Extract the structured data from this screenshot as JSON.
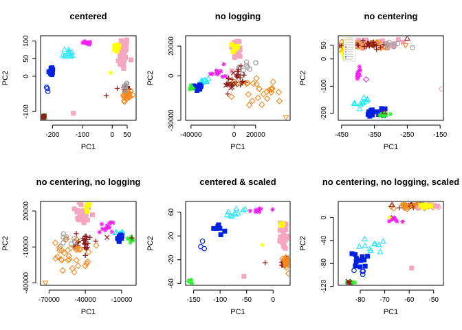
{
  "colors": {
    "pink": "#F4A6C0",
    "yellow": "#FFFF00",
    "gray": "#A0A0A0",
    "darkred": "#8B1A1A",
    "orange": "#F08A1C",
    "magenta": "#F020F0",
    "cyan": "#20E8FF",
    "blue": "#0020E0",
    "green": "#30EE30"
  },
  "chart_data": [
    {
      "type": "scatter",
      "title": "centered",
      "xlabel": "PC1",
      "ylabel": "PC2",
      "xlim": [
        -240,
        80
      ],
      "ylim": [
        -125,
        115
      ],
      "xticks": [
        -200,
        -100,
        0,
        50
      ],
      "yticks": [
        -100,
        0,
        50,
        100
      ],
      "clusters": [
        {
          "color": "pink",
          "shape": "square",
          "n": 40,
          "cx": 35,
          "cy": 65,
          "sx": 10,
          "sy": 25
        },
        {
          "color": "yellow",
          "shape": "square",
          "n": 10,
          "cx": 15,
          "cy": 80,
          "sx": 5,
          "sy": 5
        },
        {
          "color": "magenta",
          "shape": "asterisk",
          "n": 12,
          "cx": -80,
          "cy": 95,
          "sx": 10,
          "sy": 3
        },
        {
          "color": "cyan",
          "shape": "triangle",
          "n": 12,
          "cx": -150,
          "cy": 65,
          "sx": 12,
          "sy": 8
        },
        {
          "color": "blue",
          "shape": "square",
          "n": 12,
          "cx": -205,
          "cy": 15,
          "sx": 4,
          "sy": 6
        },
        {
          "color": "blue",
          "shape": "circle",
          "n": 3,
          "cx": -215,
          "cy": -38,
          "sx": 2,
          "sy": 6
        },
        {
          "color": "darkred",
          "shape": "plus",
          "n": 20,
          "cx": 45,
          "cy": -40,
          "sx": 7,
          "sy": 12
        },
        {
          "color": "orange",
          "shape": "diamond",
          "n": 25,
          "cx": 50,
          "cy": -55,
          "sx": 8,
          "sy": 10
        },
        {
          "color": "gray",
          "shape": "circle",
          "n": 8,
          "cx": 45,
          "cy": -30,
          "sx": 5,
          "sy": 8
        },
        {
          "color": "green",
          "shape": "asterisk",
          "n": 8,
          "cx": -228,
          "cy": -115,
          "sx": 4,
          "sy": 4
        },
        {
          "color": "darkred",
          "shape": "square",
          "n": 4,
          "cx": -230,
          "cy": -115,
          "sx": 3,
          "sy": 3
        }
      ],
      "points": [
        {
          "x": -20,
          "y": -55,
          "color": "darkred",
          "shape": "plus"
        },
        {
          "x": -130,
          "y": -105,
          "color": "pink",
          "shape": "square"
        },
        {
          "x": -5,
          "y": 10,
          "color": "yellow",
          "shape": "asterisk"
        }
      ]
    },
    {
      "type": "scatter",
      "title": "no logging",
      "xlabel": "PC1",
      "ylabel": "PC2",
      "xlim": [
        -45000,
        52000
      ],
      "ylim": [
        -30000,
        27000
      ],
      "xticks": [
        -40000,
        0,
        20000
      ],
      "yticks": [
        -30000,
        0,
        20000
      ],
      "clusters": [
        {
          "color": "pink",
          "shape": "square",
          "n": 30,
          "cx": 2000,
          "cy": 18000,
          "sx": 2500,
          "sy": 3500
        },
        {
          "color": "yellow",
          "shape": "square",
          "n": 6,
          "cx": 1500,
          "cy": 19000,
          "sx": 1500,
          "sy": 2000
        },
        {
          "color": "gray",
          "shape": "circle",
          "n": 10,
          "cx": 12000,
          "cy": 5000,
          "sx": 5000,
          "sy": 3000
        },
        {
          "color": "darkred",
          "shape": "plus",
          "n": 25,
          "cx": 2000,
          "cy": -3000,
          "sx": 5000,
          "sy": 4000
        },
        {
          "color": "darkred",
          "shape": "cross",
          "n": 8,
          "cx": -3000,
          "cy": -5000,
          "sx": 4000,
          "sy": 3000
        },
        {
          "color": "orange",
          "shape": "diamond",
          "n": 25,
          "cx": 20000,
          "cy": -10000,
          "sx": 9000,
          "sy": 5000
        },
        {
          "color": "magenta",
          "shape": "asterisk",
          "n": 12,
          "cx": -15000,
          "cy": 2000,
          "sx": 4000,
          "sy": 2500
        },
        {
          "color": "cyan",
          "shape": "triangle",
          "n": 8,
          "cx": -27000,
          "cy": -3500,
          "sx": 2000,
          "sy": 1500
        },
        {
          "color": "blue",
          "shape": "square",
          "n": 14,
          "cx": -33000,
          "cy": -7500,
          "sx": 2000,
          "sy": 1500
        },
        {
          "color": "green",
          "shape": "asterisk",
          "n": 8,
          "cx": -40000,
          "cy": -8500,
          "sx": 1000,
          "sy": 1000
        }
      ],
      "points": [
        {
          "x": 48000,
          "y": -28000,
          "color": "orange",
          "shape": "triangle-down"
        },
        {
          "x": 42000,
          "y": -17000,
          "color": "orange",
          "shape": "diamond"
        }
      ]
    },
    {
      "type": "scatter",
      "title": "no centering",
      "xlabel": "PC1",
      "ylabel": "PC2",
      "xlim": [
        -460,
        -140
      ],
      "ylim": [
        -225,
        85
      ],
      "xticks": [
        -450,
        -350,
        -250,
        -150
      ],
      "yticks": [
        -200,
        -100,
        0,
        50
      ],
      "legend": "top-left",
      "clusters": [
        {
          "color": "yellow",
          "shape": "square",
          "n": 20,
          "cx": -430,
          "cy": 40,
          "sx": 12,
          "sy": 15
        },
        {
          "color": "pink",
          "shape": "square",
          "n": 30,
          "cx": -345,
          "cy": 55,
          "sx": 35,
          "sy": 8
        },
        {
          "color": "orange",
          "shape": "diamond",
          "n": 25,
          "cx": -390,
          "cy": 50,
          "sx": 40,
          "sy": 8
        },
        {
          "color": "darkred",
          "shape": "plus",
          "n": 25,
          "cx": -380,
          "cy": 52,
          "sx": 40,
          "sy": 6
        },
        {
          "color": "gray",
          "shape": "circle",
          "n": 8,
          "cx": -290,
          "cy": 50,
          "sx": 20,
          "sy": 8
        },
        {
          "color": "magenta",
          "shape": "asterisk",
          "n": 12,
          "cx": -400,
          "cy": -55,
          "sx": 4,
          "sy": 15
        },
        {
          "color": "cyan",
          "shape": "triangle",
          "n": 12,
          "cx": -385,
          "cy": -160,
          "sx": 12,
          "sy": 10
        },
        {
          "color": "blue",
          "shape": "square",
          "n": 14,
          "cx": -350,
          "cy": -195,
          "sx": 15,
          "sy": 6
        },
        {
          "color": "green",
          "shape": "asterisk",
          "n": 10,
          "cx": -315,
          "cy": -205,
          "sx": 8,
          "sy": 3
        }
      ],
      "points": [
        {
          "x": -375,
          "y": -75,
          "color": "magenta",
          "shape": "diamond"
        },
        {
          "x": -145,
          "y": -110,
          "color": "pink",
          "shape": "circle"
        },
        {
          "x": -250,
          "y": 75,
          "color": "darkred",
          "shape": "triangle"
        },
        {
          "x": -255,
          "y": 50,
          "color": "orange",
          "shape": "triangle-down"
        },
        {
          "x": -320,
          "y": -195,
          "color": "darkred",
          "shape": "triangle"
        }
      ]
    },
    {
      "type": "scatter",
      "title": "no centering, no logging",
      "xlabel": "PC1",
      "ylabel": "PC2",
      "xlim": [
        -77000,
        2000
      ],
      "ylim": [
        -42000,
        28000
      ],
      "xticks": [
        -70000,
        -40000,
        -10000
      ],
      "yticks": [
        -40000,
        -10000,
        20000
      ],
      "clusters": [
        {
          "color": "pink",
          "shape": "square",
          "n": 30,
          "cx": -42000,
          "cy": 18000,
          "sx": 4500,
          "sy": 5000
        },
        {
          "color": "yellow",
          "shape": "square",
          "n": 6,
          "cx": -38000,
          "cy": 23000,
          "sx": 2000,
          "sy": 2000
        },
        {
          "color": "gray",
          "shape": "circle",
          "n": 12,
          "cx": -53000,
          "cy": -6000,
          "sx": 5000,
          "sy": 5000
        },
        {
          "color": "darkred",
          "shape": "plus",
          "n": 25,
          "cx": -40000,
          "cy": -6000,
          "sx": 4500,
          "sy": 4000
        },
        {
          "color": "orange",
          "shape": "diamond",
          "n": 30,
          "cx": -52000,
          "cy": -18000,
          "sx": 7000,
          "sy": 7000
        },
        {
          "color": "magenta",
          "shape": "asterisk",
          "n": 12,
          "cx": -22000,
          "cy": 8000,
          "sx": 3000,
          "sy": 3000
        },
        {
          "color": "cyan",
          "shape": "triangle",
          "n": 8,
          "cx": -12000,
          "cy": 2000,
          "sx": 2000,
          "sy": 2000
        },
        {
          "color": "blue",
          "shape": "square",
          "n": 8,
          "cx": -11000,
          "cy": -3000,
          "sx": 1500,
          "sy": 1500
        },
        {
          "color": "green",
          "shape": "asterisk",
          "n": 8,
          "cx": -3000,
          "cy": -3500,
          "sx": 1500,
          "sy": 1500
        }
      ],
      "points": [
        {
          "x": -73000,
          "y": -40000,
          "color": "orange",
          "shape": "triangle-down"
        },
        {
          "x": -22000,
          "y": -2000,
          "color": "darkred",
          "shape": "cross"
        },
        {
          "x": -1500,
          "y": -2500,
          "color": "darkred",
          "shape": "plus"
        }
      ]
    },
    {
      "type": "scatter",
      "title": "centered & scaled",
      "xlabel": "PC1",
      "ylabel": "PC2",
      "xlim": [
        -165,
        32
      ],
      "ylim": [
        -63,
        78
      ],
      "xticks": [
        -150,
        -100,
        -50,
        0
      ],
      "yticks": [
        -60,
        -20,
        20,
        60
      ],
      "clusters": [
        {
          "color": "magenta",
          "shape": "asterisk",
          "n": 10,
          "cx": -25,
          "cy": 65,
          "sx": 8,
          "sy": 3
        },
        {
          "color": "cyan",
          "shape": "triangle",
          "n": 10,
          "cx": -70,
          "cy": 58,
          "sx": 12,
          "sy": 5
        },
        {
          "color": "blue",
          "shape": "square",
          "n": 8,
          "cx": -100,
          "cy": 33,
          "sx": 6,
          "sy": 5
        },
        {
          "color": "blue",
          "shape": "circle",
          "n": 3,
          "cx": -135,
          "cy": 5,
          "sx": 3,
          "sy": 6
        },
        {
          "color": "pink",
          "shape": "square",
          "n": 30,
          "cx": 20,
          "cy": 22,
          "sx": 3,
          "sy": 12
        },
        {
          "color": "yellow",
          "shape": "square",
          "n": 5,
          "cx": 17,
          "cy": 40,
          "sx": 2,
          "sy": 3
        },
        {
          "color": "darkred",
          "shape": "plus",
          "n": 20,
          "cx": 22,
          "cy": -25,
          "sx": 3,
          "sy": 5
        },
        {
          "color": "orange",
          "shape": "diamond",
          "n": 25,
          "cx": 25,
          "cy": -25,
          "sx": 3,
          "sy": 6
        },
        {
          "color": "green",
          "shape": "asterisk",
          "n": 8,
          "cx": -155,
          "cy": -57,
          "sx": 4,
          "sy": 3
        }
      ],
      "points": [
        {
          "x": -15,
          "y": -25,
          "color": "darkred",
          "shape": "plus"
        },
        {
          "x": -55,
          "y": -48,
          "color": "pink",
          "shape": "square"
        },
        {
          "x": -20,
          "y": 5,
          "color": "yellow",
          "shape": "asterisk"
        }
      ]
    },
    {
      "type": "scatter",
      "title": "no centering, no logging, scaled",
      "xlabel": "PC1",
      "ylabel": "PC2",
      "xlim": [
        -89,
        -46
      ],
      "ylim": [
        -118,
        28
      ],
      "xticks": [
        -80,
        -70,
        -60,
        -50
      ],
      "yticks": [
        -120,
        -80,
        -40,
        0
      ],
      "clusters": [
        {
          "color": "darkred",
          "shape": "plus",
          "n": 30,
          "cx": -57,
          "cy": 21,
          "sx": 4,
          "sy": 2
        },
        {
          "color": "orange",
          "shape": "diamond",
          "n": 30,
          "cx": -58,
          "cy": 20,
          "sx": 4,
          "sy": 2
        },
        {
          "color": "pink",
          "shape": "square",
          "n": 15,
          "cx": -53,
          "cy": 21,
          "sx": 2,
          "sy": 2
        },
        {
          "color": "yellow",
          "shape": "square",
          "n": 8,
          "cx": -55,
          "cy": 19,
          "sx": 2,
          "sy": 2
        },
        {
          "color": "magenta",
          "shape": "asterisk",
          "n": 8,
          "cx": -66,
          "cy": -7,
          "sx": 1.5,
          "sy": 5
        },
        {
          "color": "cyan",
          "shape": "triangle",
          "n": 10,
          "cx": -75,
          "cy": -47,
          "sx": 2.5,
          "sy": 8
        },
        {
          "color": "blue",
          "shape": "square",
          "n": 12,
          "cx": -80,
          "cy": -77,
          "sx": 3,
          "sy": 8
        },
        {
          "color": "blue",
          "shape": "circle",
          "n": 4,
          "cx": -80,
          "cy": -97,
          "sx": 1,
          "sy": 5
        },
        {
          "color": "green",
          "shape": "asterisk",
          "n": 10,
          "cx": -84,
          "cy": -112,
          "sx": 1.5,
          "sy": 3
        },
        {
          "color": "darkred",
          "shape": "cross",
          "n": 4,
          "cx": -85,
          "cy": -113,
          "sx": 1,
          "sy": 2
        }
      ],
      "points": [
        {
          "x": -67,
          "y": 22,
          "color": "darkred",
          "shape": "triangle"
        },
        {
          "x": -68,
          "y": 0,
          "color": "yellow",
          "shape": "asterisk"
        },
        {
          "x": -59,
          "y": -88,
          "color": "pink",
          "shape": "square"
        },
        {
          "x": -48,
          "y": 18,
          "color": "pink",
          "shape": "circle"
        }
      ]
    }
  ]
}
